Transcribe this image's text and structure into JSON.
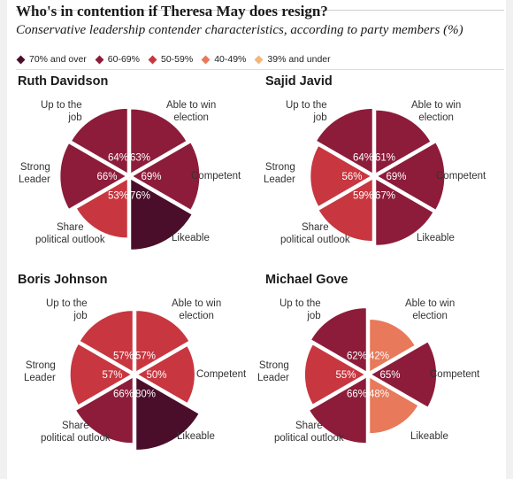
{
  "title": "Who's in contention if Theresa May does resign?",
  "subtitle": "Conservative leadership contender characteristics, according to party members (%)",
  "legend": [
    {
      "label": "70% and over",
      "color": "#4a0e2a"
    },
    {
      "label": "60-69%",
      "color": "#8c1c3a"
    },
    {
      "label": "50-59%",
      "color": "#c8363f"
    },
    {
      "label": "40-49%",
      "color": "#e8795a"
    },
    {
      "label": "39% and under",
      "color": "#f2b77a"
    }
  ],
  "chart_data": [
    {
      "type": "polar-area",
      "title": "Ruth Davidson",
      "categories": [
        "Able to win election",
        "Competent",
        "Likeable",
        "Share political outlook",
        "Strong Leader",
        "Up to the job"
      ],
      "values": [
        63,
        69,
        76,
        53,
        66,
        64
      ]
    },
    {
      "type": "polar-area",
      "title": "Sajid Javid",
      "categories": [
        "Able to win election",
        "Competent",
        "Likeable",
        "Share political outlook",
        "Strong Leader",
        "Up to the job"
      ],
      "values": [
        61,
        69,
        67,
        59,
        56,
        64
      ]
    },
    {
      "type": "polar-area",
      "title": "Boris Johnson",
      "categories": [
        "Able to win election",
        "Competent",
        "Likeable",
        "Share political outlook",
        "Strong Leader",
        "Up to the job"
      ],
      "values": [
        57,
        50,
        80,
        66,
        57,
        57
      ]
    },
    {
      "type": "polar-area",
      "title": "Michael Gove",
      "categories": [
        "Able to win election",
        "Competent",
        "Likeable",
        "Share political outlook",
        "Strong Leader",
        "Up to the job"
      ],
      "values": [
        42,
        65,
        48,
        66,
        55,
        62
      ]
    }
  ],
  "axis_labels": [
    "Able to win\nelection",
    "Competent",
    "Likeable",
    "Share\npolitical outlook",
    "Strong\nLeader",
    "Up to the\njob"
  ]
}
